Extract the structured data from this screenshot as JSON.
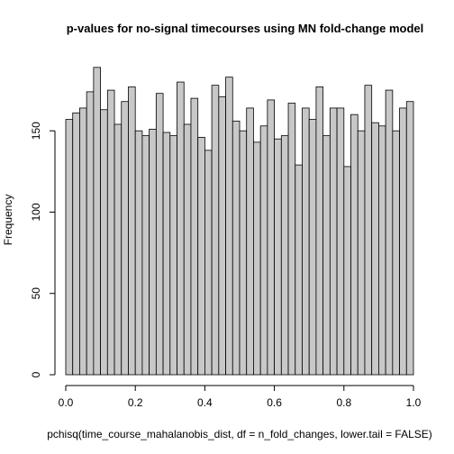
{
  "chart_data": {
    "type": "histogram",
    "title": "p-values for no-signal timecourses using MN fold-change model",
    "xlabel": "pchisq(time_course_mahalanobis_dist, df = n_fold_changes, lower.tail = FALSE)",
    "ylabel": "Frequency",
    "bins": [
      0,
      0.02,
      0.04,
      0.06,
      0.08,
      0.1,
      0.12,
      0.14,
      0.16,
      0.18,
      0.2,
      0.22,
      0.24,
      0.26,
      0.28,
      0.3,
      0.32,
      0.34,
      0.36,
      0.38,
      0.4,
      0.42,
      0.44,
      0.46,
      0.48,
      0.5,
      0.52,
      0.54,
      0.56,
      0.58,
      0.6,
      0.62,
      0.64,
      0.66,
      0.68,
      0.7,
      0.72,
      0.74,
      0.76,
      0.78,
      0.8,
      0.82,
      0.84,
      0.86,
      0.88,
      0.9,
      0.92,
      0.94,
      0.96,
      0.98,
      1
    ],
    "values": [
      157,
      161,
      164,
      174,
      189,
      163,
      175,
      154,
      168,
      177,
      150,
      147,
      151,
      173,
      149,
      147,
      180,
      154,
      170,
      146,
      138,
      178,
      171,
      183,
      156,
      150,
      164,
      143,
      153,
      169,
      145,
      147,
      167,
      129,
      164,
      157,
      177,
      147,
      164,
      164,
      128,
      160,
      150,
      178,
      155,
      153,
      175,
      150,
      164,
      168
    ],
    "color": "#c8c8c8",
    "xlim": [
      0,
      1
    ],
    "xticks": [
      {
        "value": 0,
        "label": "0.0"
      },
      0.2,
      0.4,
      0.6,
      0.8,
      {
        "value": 1,
        "label": "1.0"
      }
    ],
    "ylim": [
      0,
      190
    ],
    "yticks": [
      0,
      50,
      100,
      150
    ]
  }
}
